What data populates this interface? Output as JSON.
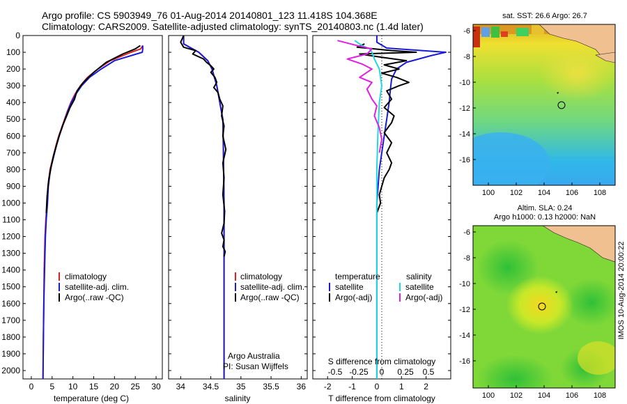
{
  "header": {
    "title": "Argo profile: CS 5903949_76 01-Aug-2014 20140801_123 11.418S 104.368E",
    "subtitle": "Climatology: CARS2009. Satellite-adjusted climatology: synTS_20140803.nc (1.4d later)"
  },
  "footer": {
    "stamp": "IMOS 10-Aug-2014 20:00:22"
  },
  "colors": {
    "climatology": "#e02020",
    "satellite": "#1a1ad8",
    "argo": "#000000",
    "salinity_sat": "#20d8e0",
    "salinity_argo": "#e020e0"
  },
  "depth_axis": {
    "ylim": [
      0,
      2050
    ],
    "ticks": [
      0,
      100,
      200,
      300,
      400,
      500,
      600,
      700,
      800,
      900,
      1000,
      1100,
      1200,
      1300,
      1400,
      1500,
      1600,
      1700,
      1800,
      1900,
      2000
    ]
  },
  "chart_data": [
    {
      "type": "line",
      "panel": "temperature",
      "xlabel": "temperature (deg C)",
      "xlim": [
        -2,
        31.5
      ],
      "xticks": [
        0,
        5,
        10,
        15,
        20,
        25,
        30
      ],
      "ylim": [
        0,
        2050
      ],
      "legend": [
        "climatology",
        "satellite-adj. clim.",
        "Argo(..raw -QC)"
      ],
      "series": [
        {
          "name": "climatology",
          "color": "#e02020",
          "x": [
            26.8,
            26.3,
            24,
            19,
            16,
            13.5,
            11.8,
            10.5,
            9.5,
            8.7,
            8,
            7.3,
            6.6,
            6,
            5.5,
            5,
            4.5,
            4,
            3.8,
            3.5,
            3.3,
            3.1,
            3,
            2.9,
            2.8
          ],
          "y": [
            60,
            80,
            100,
            150,
            200,
            250,
            300,
            350,
            400,
            450,
            500,
            550,
            600,
            650,
            700,
            750,
            800,
            900,
            1000,
            1100,
            1200,
            1400,
            1600,
            1800,
            2050
          ]
        },
        {
          "name": "satellite-adj. clim.",
          "color": "#1a1ad8",
          "x": [
            26.8,
            26.8,
            26.7,
            20,
            16.8,
            14,
            12.1,
            10.7,
            9.6,
            8.8,
            8.1,
            7.4,
            6.7,
            6.1,
            5.6,
            5.1,
            4.6,
            4.1,
            3.9,
            3.6,
            3.4,
            3.2,
            3,
            2.9,
            2.8
          ],
          "y": [
            60,
            80,
            100,
            150,
            200,
            250,
            300,
            350,
            400,
            450,
            500,
            550,
            600,
            650,
            700,
            750,
            800,
            900,
            1000,
            1100,
            1200,
            1400,
            1600,
            1800,
            2050
          ]
        },
        {
          "name": "Argo(..raw -QC)",
          "color": "#000000",
          "x": [
            26.2,
            25,
            22,
            18,
            15,
            12.5,
            11,
            10.4,
            9.3,
            8.5,
            7.5,
            6.7,
            6,
            5.3,
            4.8,
            4.2,
            3.8,
            3.6
          ],
          "y": [
            60,
            80,
            110,
            160,
            220,
            280,
            330,
            380,
            430,
            480,
            540,
            600,
            660,
            720,
            780,
            860,
            960,
            1060
          ]
        }
      ]
    },
    {
      "type": "line",
      "panel": "salinity",
      "xlabel": "salinity",
      "xlim": [
        33.8,
        36.1
      ],
      "xticks": [
        34,
        34.5,
        35,
        35.5,
        36
      ],
      "ylim": [
        0,
        2050
      ],
      "legend": [
        "climatology",
        "satellite-adj. clim.",
        "Argo(..raw -QC)"
      ],
      "annotations": [
        "Argo Australia",
        "PI: Susan Wijffels"
      ],
      "series": [
        {
          "name": "climatology",
          "color": "#e02020",
          "x": [
            34.05,
            34.05,
            34.2,
            34.3,
            34.45,
            34.52,
            34.6,
            34.65,
            34.7,
            34.71,
            34.72,
            34.72,
            34.72,
            34.72
          ],
          "y": [
            0,
            50,
            80,
            100,
            150,
            200,
            300,
            400,
            500,
            700,
            1000,
            1400,
            1800,
            2050
          ]
        },
        {
          "name": "satellite-adj. clim.",
          "color": "#1a1ad8",
          "x": [
            34.05,
            34.05,
            34.2,
            34.3,
            34.45,
            34.52,
            34.6,
            34.65,
            34.7,
            34.71,
            34.72,
            34.72,
            34.72,
            34.72
          ],
          "y": [
            0,
            50,
            80,
            100,
            150,
            200,
            300,
            400,
            500,
            700,
            1000,
            1400,
            1800,
            2050
          ]
        },
        {
          "name": "Argo(..raw -QC)",
          "color": "#000000",
          "x": [
            34.05,
            34.0,
            34.05,
            34.25,
            34.2,
            34.38,
            34.43,
            34.5,
            34.55,
            34.5,
            34.57,
            34.6,
            34.55,
            34.62,
            34.65,
            34.7,
            34.68,
            34.72,
            34.7,
            34.75,
            34.7,
            34.72,
            34.7,
            34.73,
            34.72,
            34.68,
            34.72,
            34.7,
            34.74,
            34.72
          ],
          "y": [
            0,
            40,
            70,
            90,
            110,
            140,
            160,
            180,
            200,
            220,
            250,
            280,
            310,
            340,
            380,
            420,
            480,
            540,
            600,
            680,
            760,
            850,
            950,
            1050,
            1120,
            1180,
            1220,
            1260,
            1290,
            1320
          ]
        }
      ]
    },
    {
      "type": "line",
      "panel": "differences",
      "xlabel": "T difference from climatology",
      "xlim": [
        -2.6,
        3.0
      ],
      "xticks": [
        -2,
        -1,
        0,
        1,
        2
      ],
      "s_axis_label": "S difference from climatology",
      "s_ticks": [
        "-0.5",
        "-0.25",
        "0",
        "0.25",
        "0.5"
      ],
      "ylim": [
        0,
        2050
      ],
      "legend_titles": [
        "temperature",
        "salinity"
      ],
      "legend": [
        "satellite",
        "Argo(-adj)",
        "satellite",
        "Argo(-adj)"
      ],
      "series": [
        {
          "name": "temperature satellite",
          "color": "#1a1ad8",
          "x": [
            0,
            0,
            0.4,
            2.8,
            2.2,
            1.2,
            0.8,
            0.6,
            0.55,
            0.5,
            0.4,
            0.3,
            0.2,
            0.1,
            0.05,
            0,
            0,
            0
          ],
          "y": [
            0,
            40,
            75,
            100,
            120,
            160,
            200,
            260,
            320,
            400,
            500,
            600,
            700,
            800,
            900,
            1000,
            1500,
            2050
          ]
        },
        {
          "name": "temperature Argo(-adj)",
          "color": "#000000",
          "x": [
            -0.5,
            -0.8,
            0.6,
            1.6,
            -0.7,
            0.2,
            1.2,
            0.3,
            0.9,
            0.2,
            0.8,
            1.3,
            0.9,
            0.4,
            0.6,
            0.3,
            0.7,
            0.6,
            0.3,
            0.6,
            0.4,
            0.6,
            0.5,
            0.3,
            0.2,
            0.1,
            0.15,
            0
          ],
          "y": [
            50,
            70,
            90,
            100,
            110,
            130,
            150,
            175,
            200,
            225,
            250,
            280,
            300,
            330,
            380,
            430,
            480,
            520,
            580,
            640,
            700,
            760,
            800,
            850,
            900,
            950,
            1000,
            1060
          ]
        },
        {
          "name": "salinity satellite",
          "color": "#20d8e0",
          "x": [
            -0.45,
            -0.3,
            -0.15,
            -0.1,
            -0.05,
            0.05,
            0.1,
            0.05,
            0.02,
            0,
            0,
            0
          ],
          "y": [
            30,
            60,
            80,
            100,
            140,
            200,
            300,
            400,
            600,
            800,
            1200,
            2050
          ]
        },
        {
          "name": "salinity Argo(-adj)",
          "color": "#e020e0",
          "x": [
            -0.8,
            -0.4,
            -0.1,
            -0.2,
            -0.6,
            -0.3,
            -0.1,
            -0.35,
            -0.1,
            -0.2,
            -0.1,
            0,
            -0.05,
            0.05,
            0.1,
            0.05
          ],
          "y": [
            30,
            60,
            80,
            110,
            140,
            170,
            200,
            250,
            280,
            320,
            380,
            420,
            480,
            550,
            620,
            700
          ]
        }
      ]
    }
  ],
  "maps": {
    "sst": {
      "title": "sat. SST: 26.6 Argo: 26.7",
      "xticks": [
        "100",
        "102",
        "104",
        "106",
        "108"
      ],
      "yticks": [
        "-6",
        "-8",
        "-10",
        "-12",
        "-14",
        "-16"
      ]
    },
    "sla": {
      "title_line1": "Altim. SLA: 0.24",
      "title_line2": "Argo h1000: 0.13 h2000: NaN",
      "xticks": [
        "100",
        "102",
        "104",
        "106",
        "108"
      ],
      "yticks": [
        "-6",
        "-8",
        "-10",
        "-12",
        "-14",
        "-16"
      ]
    }
  }
}
